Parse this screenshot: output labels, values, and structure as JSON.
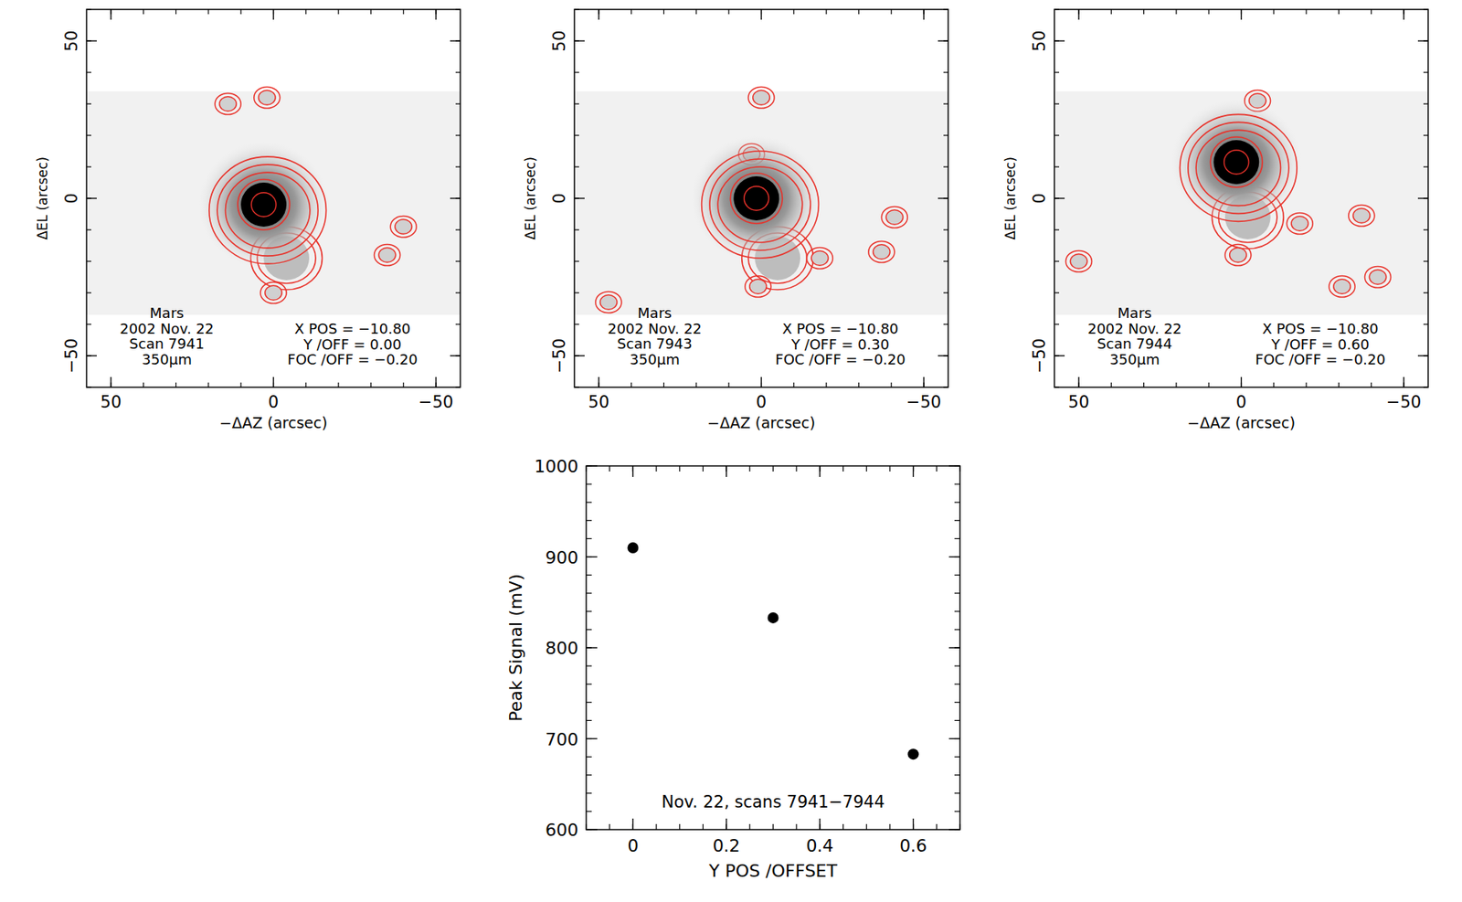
{
  "chart_data": [
    {
      "type": "image",
      "xlabel": "−ΔAZ (arcsec)",
      "ylabel": "ΔEL (arcsec)",
      "xlim": [
        57.5,
        -57.5
      ],
      "ylim": [
        -60,
        60
      ],
      "xticks": [
        50,
        0,
        {
          "value": -50,
          "label": "−50"
        }
      ],
      "yticks": [
        {
          "value": -50,
          "label": "−50"
        },
        0,
        50
      ],
      "annotations_left": [
        "Mars",
        "2002 Nov. 22",
        "Scan 7941",
        "350μm"
      ],
      "annotations_right": [
        "X POS = −10.80",
        "Y /OFF = 0.00",
        "FOC /OFF = −0.20"
      ],
      "data_ylim": [
        -37,
        34
      ],
      "peak_x": 3,
      "peak_y": -2,
      "tail_x": -4,
      "tail_y": -19,
      "lobes_x": [
        2,
        0,
        -40,
        -35,
        14
      ],
      "lobes_y": [
        32,
        -30,
        -9,
        -18,
        30
      ]
    },
    {
      "type": "image",
      "xlabel": "−ΔAZ (arcsec)",
      "ylabel": "ΔEL (arcsec)",
      "xlim": [
        57.5,
        -57.5
      ],
      "ylim": [
        -60,
        60
      ],
      "xticks": [
        50,
        0,
        {
          "value": -50,
          "label": "−50"
        }
      ],
      "yticks": [
        {
          "value": -50,
          "label": "−50"
        },
        0,
        50
      ],
      "annotations_left": [
        "Mars",
        "2002 Nov. 22",
        "Scan 7943",
        "350μm"
      ],
      "annotations_right": [
        "X POS = −10.80",
        "Y /OFF = 0.30",
        "FOC /OFF = −0.20"
      ],
      "data_ylim": [
        -37,
        34
      ],
      "peak_x": 1.5,
      "peak_y": 0,
      "tail_x": -5,
      "tail_y": -19,
      "lobes_x": [
        0,
        1,
        3,
        -18,
        -37,
        -41,
        47
      ],
      "lobes_y": [
        32,
        -28,
        14,
        -19,
        -17,
        -6,
        -33
      ]
    },
    {
      "type": "image",
      "xlabel": "−ΔAZ (arcsec)",
      "ylabel": "ΔEL (arcsec)",
      "xlim": [
        57.5,
        -57.5
      ],
      "ylim": [
        -60,
        60
      ],
      "xticks": [
        50,
        0,
        {
          "value": -50,
          "label": "−50"
        }
      ],
      "yticks": [
        {
          "value": -50,
          "label": "−50"
        },
        0,
        50
      ],
      "annotations_left": [
        "Mars",
        "2002 Nov. 22",
        "Scan 7944",
        "350μm"
      ],
      "annotations_right": [
        "X POS = −10.80",
        "Y /OFF = 0.60",
        "FOC /OFF = −0.20"
      ],
      "data_ylim": [
        -37,
        34
      ],
      "peak_x": 1.5,
      "peak_y": 11.5,
      "tail_x": -2,
      "tail_y": -6,
      "lobes_x": [
        -5,
        1,
        -18,
        -37,
        50,
        -31,
        -42
      ],
      "lobes_y": [
        31,
        -18,
        -8,
        -5.5,
        -20,
        -28,
        -25
      ]
    },
    {
      "type": "scatter",
      "xlabel": "Y POS /OFFSET",
      "ylabel": "Peak Signal (mV)",
      "annotation": "Nov. 22, scans 7941−7944",
      "x": [
        0,
        0.3,
        0.6
      ],
      "values": [
        910,
        833,
        683
      ],
      "color": "#000000",
      "marker": "circle",
      "xlim": [
        -0.1,
        0.7
      ],
      "ylim": [
        600,
        1000
      ],
      "xticks": [
        0,
        0.2,
        0.4,
        0.6
      ],
      "yticks": [
        600,
        700,
        800,
        900,
        1000
      ]
    }
  ]
}
